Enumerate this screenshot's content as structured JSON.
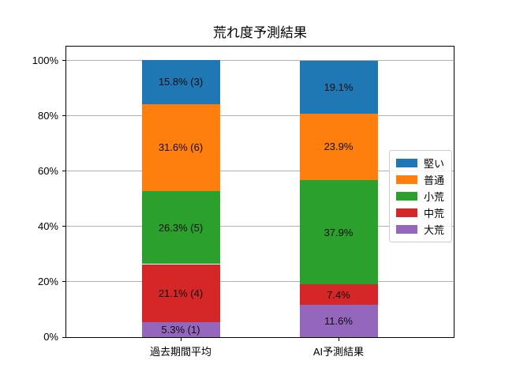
{
  "chart_data": {
    "type": "bar",
    "subtype": "stacked_percentage",
    "title": "荒れ度予測結果",
    "categories": [
      "過去期間平均",
      "AI予測結果"
    ],
    "series": [
      {
        "name": "大荒",
        "color": "#9467bd",
        "values": [
          5.3,
          11.6
        ],
        "labels": [
          "5.3% (1)",
          "11.6%"
        ]
      },
      {
        "name": "中荒",
        "color": "#d62728",
        "values": [
          21.1,
          7.4
        ],
        "labels": [
          "21.1% (4)",
          "7.4%"
        ]
      },
      {
        "name": "小荒",
        "color": "#2ca02c",
        "values": [
          26.3,
          37.9
        ],
        "labels": [
          "26.3% (5)",
          "37.9%"
        ]
      },
      {
        "name": "普通",
        "color": "#ff7f0e",
        "values": [
          31.6,
          23.9
        ],
        "labels": [
          "31.6% (6)",
          "23.9%"
        ]
      },
      {
        "name": "堅い",
        "color": "#1f77b4",
        "values": [
          15.8,
          19.1
        ],
        "labels": [
          "15.8% (3)",
          "19.1%"
        ]
      }
    ],
    "y_axis": {
      "ticks": [
        "0%",
        "20%",
        "40%",
        "60%",
        "80%",
        "100%"
      ],
      "tick_values": [
        0,
        20,
        40,
        60,
        80,
        100
      ],
      "max": 105
    },
    "legend": {
      "position": "right",
      "labels": [
        "堅い",
        "普通",
        "小荒",
        "中荒",
        "大荒"
      ]
    },
    "grid": true
  }
}
